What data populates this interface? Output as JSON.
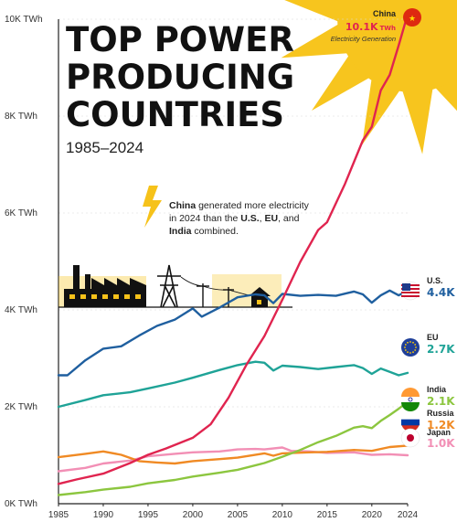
{
  "header": {
    "title_lines": [
      "TOP POWER",
      "PRODUCING",
      "COUNTRIES"
    ],
    "subtitle": "1985–2024"
  },
  "annotation": {
    "parts": [
      {
        "text": "China",
        "bold": true
      },
      {
        "text": " generated more electricity",
        "bold": false
      },
      {
        "text": "in 2024 than the ",
        "bold": false,
        "newline": true
      },
      {
        "text": "U.S.",
        "bold": true
      },
      {
        "text": ", ",
        "bold": false
      },
      {
        "text": "EU",
        "bold": true
      },
      {
        "text": ", and",
        "bold": false
      },
      {
        "text": "India",
        "bold": true,
        "newline": true
      },
      {
        "text": " combined.",
        "bold": false
      }
    ]
  },
  "china_callout": {
    "name": "China",
    "value": "10.1K",
    "unit": "TWh",
    "note": "Electricity Generation"
  },
  "icons": [
    "lightning-bolt-icon",
    "factory-icon",
    "power-tower-icon",
    "utility-pole-icon",
    "house-icon",
    "sun-burst-icon"
  ],
  "chart_data": {
    "type": "line",
    "ylim": [
      0,
      10000
    ],
    "xlim": [
      1985,
      2024
    ],
    "yticks": [
      {
        "value": 0,
        "label": "0K TWh"
      },
      {
        "value": 2000,
        "label": "2K TWh"
      },
      {
        "value": 4000,
        "label": "4K TWh"
      },
      {
        "value": 6000,
        "label": "6K TWh"
      },
      {
        "value": 8000,
        "label": "8K TWh"
      },
      {
        "value": 10000,
        "label": "10K TWh"
      }
    ],
    "xticks": [
      1985,
      1990,
      1995,
      2000,
      2005,
      2010,
      2015,
      2020,
      2024
    ],
    "series": [
      {
        "name": "China",
        "label": "",
        "value_label": "",
        "color": "#e0244f",
        "x": [
          1985,
          1987,
          1990,
          1993,
          1995,
          1997,
          2000,
          2002,
          2004,
          2006,
          2008,
          2010,
          2012,
          2014,
          2015,
          2017,
          2019,
          2020,
          2021,
          2022,
          2023,
          2024
        ],
        "y": [
          410,
          500,
          620,
          840,
          1010,
          1140,
          1360,
          1640,
          2190,
          2870,
          3460,
          4210,
          4990,
          5650,
          5810,
          6600,
          7500,
          7780,
          8530,
          8850,
          9460,
          10100
        ]
      },
      {
        "name": "U.S.",
        "label": "U.S.",
        "value_label": "4.4K",
        "color": "#1f5f9f",
        "x": [
          1985,
          1986,
          1988,
          1990,
          1992,
          1994,
          1996,
          1998,
          2000,
          2001,
          2003,
          2005,
          2007,
          2008,
          2009,
          2010,
          2012,
          2014,
          2016,
          2018,
          2019,
          2020,
          2021,
          2022,
          2023,
          2024
        ],
        "y": [
          2650,
          2650,
          2960,
          3200,
          3250,
          3470,
          3670,
          3800,
          4030,
          3860,
          4050,
          4260,
          4320,
          4300,
          4140,
          4330,
          4290,
          4310,
          4290,
          4380,
          4320,
          4150,
          4300,
          4400,
          4300,
          4400
        ]
      },
      {
        "name": "EU",
        "label": "EU",
        "value_label": "2.7K",
        "color": "#1fa397",
        "x": [
          1985,
          1988,
          1990,
          1993,
          1995,
          1998,
          2000,
          2003,
          2005,
          2007,
          2008,
          2009,
          2010,
          2012,
          2014,
          2016,
          2018,
          2019,
          2020,
          2021,
          2022,
          2023,
          2024
        ],
        "y": [
          2000,
          2140,
          2240,
          2300,
          2380,
          2500,
          2600,
          2760,
          2860,
          2930,
          2910,
          2750,
          2850,
          2820,
          2780,
          2820,
          2860,
          2800,
          2680,
          2790,
          2720,
          2650,
          2700
        ]
      },
      {
        "name": "India",
        "label": "India",
        "value_label": "2.1K",
        "color": "#8cc63f",
        "x": [
          1985,
          1988,
          1990,
          1993,
          1995,
          1998,
          2000,
          2003,
          2005,
          2008,
          2010,
          2012,
          2014,
          2016,
          2018,
          2019,
          2020,
          2021,
          2022,
          2023,
          2024
        ],
        "y": [
          180,
          240,
          290,
          350,
          420,
          490,
          560,
          640,
          700,
          840,
          970,
          1110,
          1270,
          1400,
          1570,
          1600,
          1560,
          1710,
          1830,
          1960,
          2100
        ]
      },
      {
        "name": "Russia",
        "label": "Russia",
        "value_label": "1.2K",
        "color": "#f08a24",
        "x": [
          1985,
          1988,
          1990,
          1992,
          1994,
          1996,
          1998,
          2000,
          2003,
          2005,
          2008,
          2009,
          2010,
          2013,
          2015,
          2018,
          2020,
          2022,
          2024
        ],
        "y": [
          960,
          1030,
          1080,
          1010,
          880,
          850,
          830,
          880,
          920,
          950,
          1040,
          990,
          1040,
          1060,
          1070,
          1110,
          1090,
          1170,
          1200
        ]
      },
      {
        "name": "Japan",
        "label": "Japan",
        "value_label": "1.0K",
        "color": "#f28fb5",
        "x": [
          1985,
          1988,
          1990,
          1993,
          1995,
          1998,
          2000,
          2003,
          2005,
          2007,
          2008,
          2010,
          2011,
          2013,
          2015,
          2018,
          2020,
          2022,
          2024
        ],
        "y": [
          670,
          740,
          830,
          890,
          980,
          1030,
          1060,
          1080,
          1120,
          1130,
          1120,
          1160,
          1090,
          1080,
          1050,
          1060,
          1010,
          1020,
          1000
        ]
      }
    ]
  }
}
